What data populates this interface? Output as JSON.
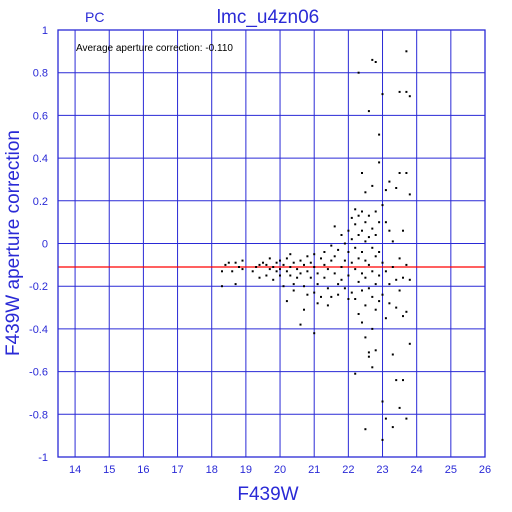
{
  "chart_data": {
    "type": "scatter",
    "corner_label": "PC",
    "title": "lmc_u4zn06",
    "annotation": "Average aperture correction: -0.110",
    "xlabel": "F439W",
    "ylabel": "F439W aperture correction",
    "xlim": [
      13.5,
      26
    ],
    "ylim": [
      -1,
      1
    ],
    "x_ticks": [
      "14",
      "15",
      "16",
      "17",
      "18",
      "19",
      "20",
      "21",
      "22",
      "23",
      "24",
      "25",
      "26"
    ],
    "y_ticks": [
      "1",
      "0.8",
      "0.6",
      "0.4",
      "0.2",
      "0",
      "-0.2",
      "-0.4",
      "-0.6",
      "-0.8",
      "-1"
    ],
    "grid": true,
    "reference_line": {
      "y": -0.11,
      "color": "#ff0000"
    },
    "axis_color": "#2a2ad6",
    "point_color": "#000000",
    "points": [
      [
        18.3,
        -0.13
      ],
      [
        18.3,
        -0.2
      ],
      [
        18.4,
        -0.1
      ],
      [
        18.5,
        -0.09
      ],
      [
        18.6,
        -0.13
      ],
      [
        18.7,
        -0.09
      ],
      [
        18.7,
        -0.19
      ],
      [
        18.8,
        -0.11
      ],
      [
        18.9,
        -0.08
      ],
      [
        18.9,
        -0.12
      ],
      [
        19.2,
        -0.13
      ],
      [
        19.3,
        -0.11
      ],
      [
        19.4,
        -0.1
      ],
      [
        19.4,
        -0.16
      ],
      [
        19.5,
        -0.09
      ],
      [
        19.6,
        -0.1
      ],
      [
        19.6,
        -0.15
      ],
      [
        19.7,
        -0.12
      ],
      [
        19.7,
        -0.07
      ],
      [
        19.8,
        -0.11
      ],
      [
        19.8,
        -0.17
      ],
      [
        19.9,
        -0.09
      ],
      [
        19.9,
        -0.13
      ],
      [
        20.0,
        -0.08
      ],
      [
        20.0,
        -0.12
      ],
      [
        20.0,
        -0.15
      ],
      [
        20.1,
        -0.1
      ],
      [
        20.1,
        -0.2
      ],
      [
        20.2,
        -0.07
      ],
      [
        20.2,
        -0.13
      ],
      [
        20.2,
        -0.27
      ],
      [
        20.3,
        -0.05
      ],
      [
        20.3,
        -0.11
      ],
      [
        20.3,
        -0.15
      ],
      [
        20.4,
        -0.09
      ],
      [
        20.4,
        -0.19
      ],
      [
        20.4,
        -0.22
      ],
      [
        20.5,
        -0.12
      ],
      [
        20.5,
        -0.16
      ],
      [
        20.6,
        -0.08
      ],
      [
        20.6,
        -0.14
      ],
      [
        20.6,
        -0.38
      ],
      [
        20.7,
        -0.1
      ],
      [
        20.7,
        -0.2
      ],
      [
        20.7,
        -0.31
      ],
      [
        20.8,
        -0.06
      ],
      [
        20.8,
        -0.13
      ],
      [
        20.8,
        -0.24
      ],
      [
        20.9,
        -0.09
      ],
      [
        20.9,
        -0.16
      ],
      [
        21.0,
        -0.05
      ],
      [
        21.0,
        -0.11
      ],
      [
        21.0,
        -0.23
      ],
      [
        21.0,
        -0.42
      ],
      [
        21.1,
        -0.14
      ],
      [
        21.1,
        -0.19
      ],
      [
        21.1,
        -0.28
      ],
      [
        21.2,
        -0.07
      ],
      [
        21.2,
        -0.25
      ],
      [
        21.3,
        -0.04
      ],
      [
        21.3,
        -0.1
      ],
      [
        21.3,
        -0.16
      ],
      [
        21.4,
        -0.12
      ],
      [
        21.4,
        -0.21
      ],
      [
        21.4,
        -0.29
      ],
      [
        21.5,
        -0.01
      ],
      [
        21.5,
        -0.08
      ],
      [
        21.5,
        -0.25
      ],
      [
        21.6,
        -0.06
      ],
      [
        21.6,
        -0.14
      ],
      [
        21.6,
        0.08
      ],
      [
        21.7,
        -0.03
      ],
      [
        21.7,
        -0.19
      ],
      [
        21.7,
        -0.24
      ],
      [
        21.8,
        0.04
      ],
      [
        21.8,
        -0.11
      ],
      [
        21.8,
        -0.17
      ],
      [
        21.9,
        0.0
      ],
      [
        21.9,
        -0.08
      ],
      [
        21.9,
        -0.21
      ],
      [
        22.0,
        0.06
      ],
      [
        22.0,
        -0.04
      ],
      [
        22.0,
        -0.15
      ],
      [
        22.0,
        -0.26
      ],
      [
        22.1,
        0.12
      ],
      [
        22.1,
        0.02
      ],
      [
        22.1,
        -0.09
      ],
      [
        22.1,
        -0.23
      ],
      [
        22.2,
        0.16
      ],
      [
        22.2,
        0.09
      ],
      [
        22.2,
        -0.02
      ],
      [
        22.2,
        -0.12
      ],
      [
        22.2,
        -0.26
      ],
      [
        22.2,
        -0.61
      ],
      [
        22.3,
        0.13
      ],
      [
        22.3,
        0.04
      ],
      [
        22.3,
        -0.07
      ],
      [
        22.3,
        -0.18
      ],
      [
        22.3,
        -0.33
      ],
      [
        22.3,
        0.8
      ],
      [
        22.4,
        0.15
      ],
      [
        22.4,
        0.06
      ],
      [
        22.4,
        -0.04
      ],
      [
        22.4,
        -0.14
      ],
      [
        22.4,
        -0.22
      ],
      [
        22.4,
        -0.37
      ],
      [
        22.4,
        0.33
      ],
      [
        22.5,
        0.1
      ],
      [
        22.5,
        0.01
      ],
      [
        22.5,
        -0.08
      ],
      [
        22.5,
        -0.16
      ],
      [
        22.5,
        -0.29
      ],
      [
        22.5,
        -0.44
      ],
      [
        22.5,
        0.24
      ],
      [
        22.5,
        -0.87
      ],
      [
        22.6,
        0.13
      ],
      [
        22.6,
        0.03
      ],
      [
        22.6,
        -0.1
      ],
      [
        22.6,
        -0.21
      ],
      [
        22.6,
        -0.51
      ],
      [
        22.6,
        0.62
      ],
      [
        22.6,
        -0.53
      ],
      [
        22.7,
        0.07
      ],
      [
        22.7,
        -0.02
      ],
      [
        22.7,
        -0.13
      ],
      [
        22.7,
        -0.25
      ],
      [
        22.7,
        -0.4
      ],
      [
        22.7,
        0.86
      ],
      [
        22.7,
        0.27
      ],
      [
        22.7,
        -0.58
      ],
      [
        22.8,
        0.15
      ],
      [
        22.8,
        0.04
      ],
      [
        22.8,
        -0.06
      ],
      [
        22.8,
        -0.19
      ],
      [
        22.8,
        -0.31
      ],
      [
        22.8,
        0.85
      ],
      [
        22.8,
        -0.5
      ],
      [
        22.9,
        0.1
      ],
      [
        22.9,
        -0.04
      ],
      [
        22.9,
        -0.15
      ],
      [
        22.9,
        -0.27
      ],
      [
        22.9,
        0.51
      ],
      [
        22.9,
        0.38
      ],
      [
        23.0,
        0.7
      ],
      [
        23.0,
        0.18
      ],
      [
        23.0,
        -0.09
      ],
      [
        23.0,
        -0.24
      ],
      [
        23.0,
        -0.74
      ],
      [
        23.0,
        -0.92
      ],
      [
        23.1,
        0.25
      ],
      [
        23.1,
        0.1
      ],
      [
        23.1,
        -0.13
      ],
      [
        23.1,
        -0.35
      ],
      [
        23.1,
        -0.82
      ],
      [
        23.2,
        0.29
      ],
      [
        23.2,
        0.06
      ],
      [
        23.2,
        -0.19
      ],
      [
        23.2,
        -0.28
      ],
      [
        23.3,
        0.01
      ],
      [
        23.3,
        -0.11
      ],
      [
        23.3,
        -0.52
      ],
      [
        23.3,
        -0.86
      ],
      [
        23.4,
        0.26
      ],
      [
        23.4,
        -0.17
      ],
      [
        23.4,
        -0.3
      ],
      [
        23.4,
        -0.64
      ],
      [
        23.5,
        0.71
      ],
      [
        23.5,
        0.33
      ],
      [
        23.5,
        -0.07
      ],
      [
        23.5,
        -0.22
      ],
      [
        23.5,
        -0.77
      ],
      [
        23.6,
        0.06
      ],
      [
        23.6,
        -0.16
      ],
      [
        23.6,
        -0.34
      ],
      [
        23.6,
        -0.64
      ],
      [
        23.7,
        0.9
      ],
      [
        23.7,
        0.71
      ],
      [
        23.7,
        0.33
      ],
      [
        23.7,
        -0.1
      ],
      [
        23.7,
        -0.32
      ],
      [
        23.7,
        -0.82
      ],
      [
        23.8,
        0.69
      ],
      [
        23.8,
        0.23
      ],
      [
        23.8,
        -0.17
      ],
      [
        23.8,
        -0.47
      ]
    ]
  }
}
